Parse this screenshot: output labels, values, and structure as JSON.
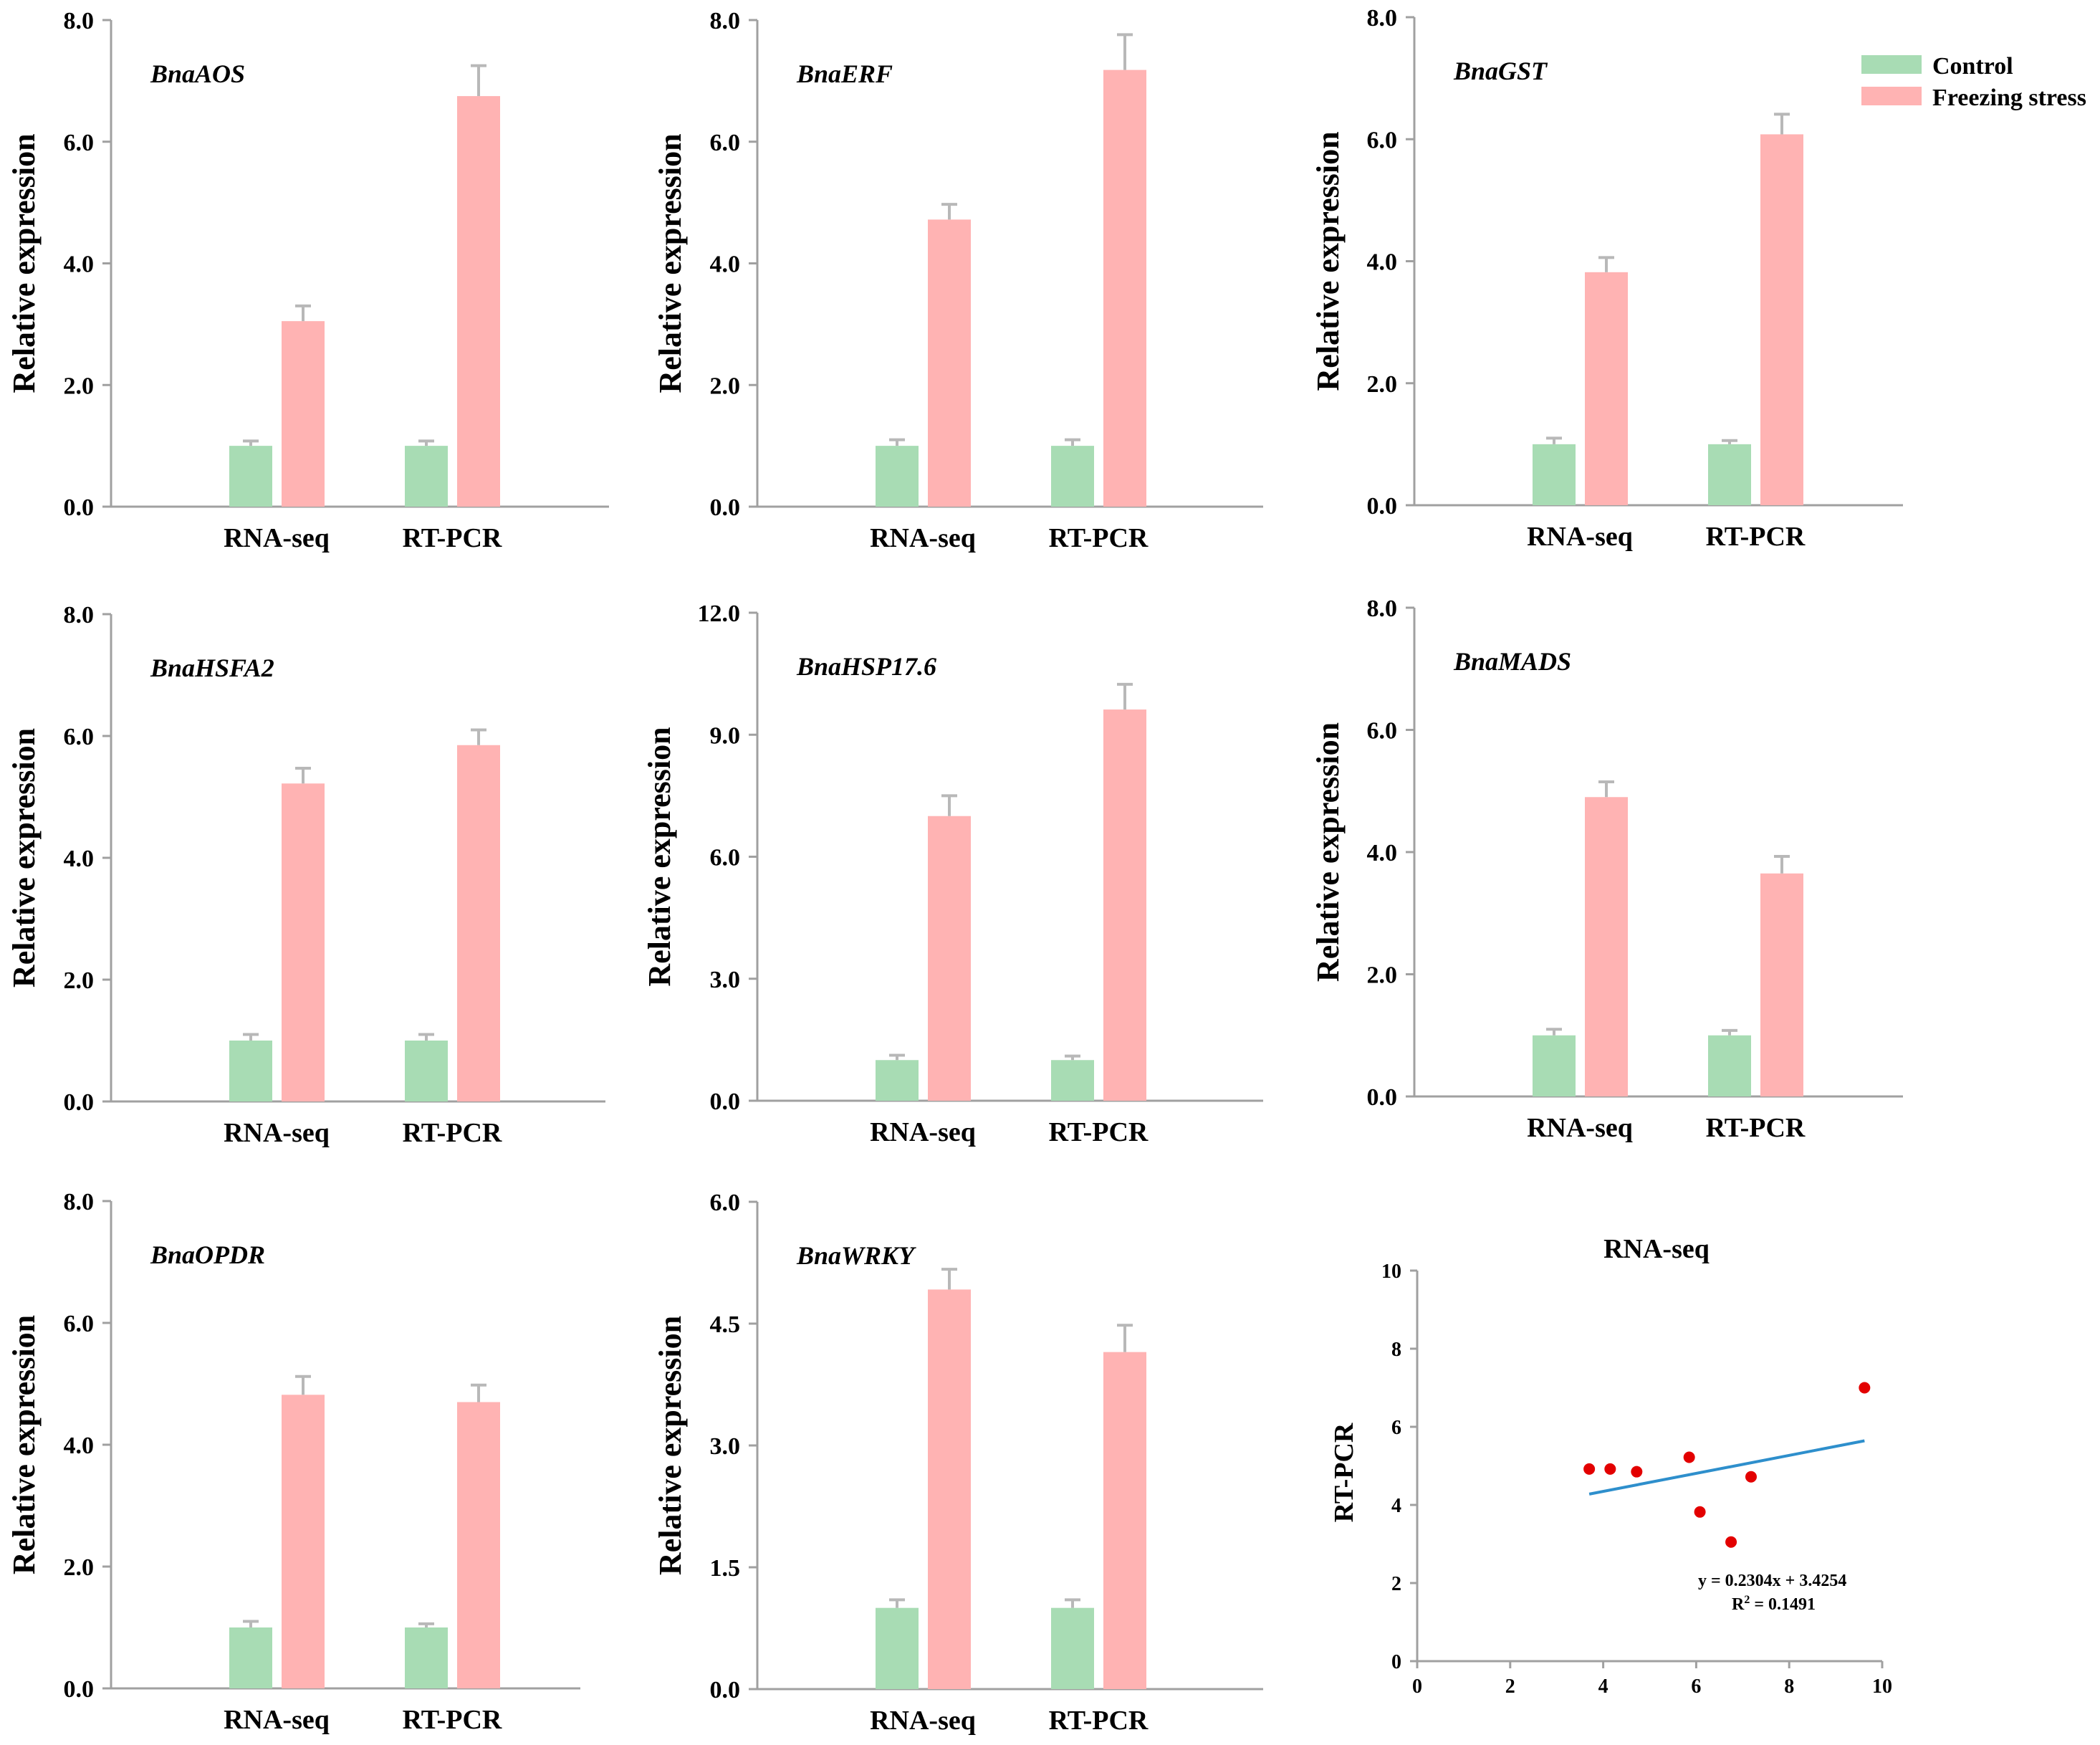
{
  "chart_data": [
    {
      "type": "bar",
      "gene": "BnaAOS",
      "ylabel": "Relative expression",
      "categories": [
        "RNA-seq",
        "RT-PCR"
      ],
      "ylim": [
        0,
        8.0
      ],
      "yticks": [
        "0.0",
        "2.0",
        "4.0",
        "6.0",
        "8.0"
      ],
      "series": [
        {
          "name": "Control",
          "values": [
            1.0,
            1.0
          ],
          "errors": [
            0.08,
            0.08
          ]
        },
        {
          "name": "Freezing stress",
          "values": [
            3.05,
            6.75
          ],
          "errors": [
            0.25,
            0.5
          ]
        }
      ]
    },
    {
      "type": "bar",
      "gene": "BnaERF",
      "ylabel": "Relative expression",
      "categories": [
        "RNA-seq",
        "RT-PCR"
      ],
      "ylim": [
        0,
        8.0
      ],
      "yticks": [
        "0.0",
        "2.0",
        "4.0",
        "6.0",
        "8.0"
      ],
      "series": [
        {
          "name": "Control",
          "values": [
            1.0,
            1.0
          ],
          "errors": [
            0.1,
            0.1
          ]
        },
        {
          "name": "Freezing stress",
          "values": [
            4.72,
            7.18
          ],
          "errors": [
            0.25,
            0.58
          ]
        }
      ]
    },
    {
      "type": "bar",
      "gene": "BnaGST",
      "ylabel": "Relative expression",
      "categories": [
        "RNA-seq",
        "RT-PCR"
      ],
      "ylim": [
        0,
        8.0
      ],
      "yticks": [
        "0.0",
        "2.0",
        "4.0",
        "6.0",
        "8.0"
      ],
      "series": [
        {
          "name": "Control",
          "values": [
            1.0,
            1.0
          ],
          "errors": [
            0.1,
            0.06
          ]
        },
        {
          "name": "Freezing stress",
          "values": [
            3.82,
            6.08
          ],
          "errors": [
            0.24,
            0.33
          ]
        }
      ]
    },
    {
      "type": "bar",
      "gene": "BnaHSFA2",
      "ylabel": "Relative expression",
      "categories": [
        "RNA-seq",
        "RT-PCR"
      ],
      "ylim": [
        0,
        8.0
      ],
      "yticks": [
        "0.0",
        "2.0",
        "4.0",
        "6.0",
        "8.0"
      ],
      "series": [
        {
          "name": "Control",
          "values": [
            1.0,
            1.0
          ],
          "errors": [
            0.1,
            0.1
          ]
        },
        {
          "name": "Freezing stress",
          "values": [
            5.22,
            5.85
          ],
          "errors": [
            0.25,
            0.25
          ]
        }
      ]
    },
    {
      "type": "bar",
      "gene": "BnaHSP17.6",
      "ylabel": "Relative expression",
      "categories": [
        "RNA-seq",
        "RT-PCR"
      ],
      "ylim": [
        0,
        12.0
      ],
      "yticks": [
        "0.0",
        "3.0",
        "6.0",
        "9.0",
        "12.0"
      ],
      "series": [
        {
          "name": "Control",
          "values": [
            1.0,
            1.0
          ],
          "errors": [
            0.12,
            0.1
          ]
        },
        {
          "name": "Freezing stress",
          "values": [
            7.0,
            9.62
          ],
          "errors": [
            0.5,
            0.62
          ]
        }
      ]
    },
    {
      "type": "bar",
      "gene": "BnaMADS",
      "ylabel": "Relative expression",
      "categories": [
        "RNA-seq",
        "RT-PCR"
      ],
      "ylim": [
        0,
        8.0
      ],
      "yticks": [
        "0.0",
        "2.0",
        "4.0",
        "6.0",
        "8.0"
      ],
      "series": [
        {
          "name": "Control",
          "values": [
            1.0,
            1.0
          ],
          "errors": [
            0.1,
            0.08
          ]
        },
        {
          "name": "Freezing stress",
          "values": [
            4.9,
            3.65
          ],
          "errors": [
            0.25,
            0.28
          ]
        }
      ]
    },
    {
      "type": "bar",
      "gene": "BnaOPDR",
      "ylabel": "Relative expression",
      "categories": [
        "RNA-seq",
        "RT-PCR"
      ],
      "ylim": [
        0,
        8.0
      ],
      "yticks": [
        "0.0",
        "2.0",
        "4.0",
        "6.0",
        "8.0"
      ],
      "series": [
        {
          "name": "Control",
          "values": [
            1.0,
            1.0
          ],
          "errors": [
            0.1,
            0.06
          ]
        },
        {
          "name": "Freezing stress",
          "values": [
            4.82,
            4.7
          ],
          "errors": [
            0.3,
            0.28
          ]
        }
      ]
    },
    {
      "type": "bar",
      "gene": "BnaWRKY",
      "ylabel": "Relative expression",
      "categories": [
        "RNA-seq",
        "RT-PCR"
      ],
      "ylim": [
        0,
        6.0
      ],
      "yticks": [
        "0.0",
        "1.5",
        "3.0",
        "4.5",
        "6.0"
      ],
      "series": [
        {
          "name": "Control",
          "values": [
            1.0,
            1.0
          ],
          "errors": [
            0.1,
            0.1
          ]
        },
        {
          "name": "Freezing stress",
          "values": [
            4.92,
            4.15
          ],
          "errors": [
            0.25,
            0.33
          ]
        }
      ]
    },
    {
      "type": "scatter",
      "title": "RNA-seq",
      "ylabel": "RT-PCR",
      "xlim": [
        0,
        10
      ],
      "ylim": [
        0,
        10
      ],
      "xticks": [
        "0",
        "2",
        "4",
        "6",
        "8",
        "10"
      ],
      "yticks": [
        "0",
        "2",
        "4",
        "6",
        "8",
        "10"
      ],
      "x": [
        3.7,
        4.15,
        4.72,
        5.85,
        6.08,
        6.75,
        7.18,
        9.62
      ],
      "y": [
        4.92,
        4.92,
        4.85,
        5.22,
        3.82,
        3.05,
        4.72,
        7.0
      ],
      "trendline": {
        "slope": 0.2304,
        "intercept": 3.4254,
        "x_range": [
          3.7,
          9.62
        ]
      },
      "equation": "y = 0.2304x + 3.4254",
      "r2_prefix": "R",
      "r2_sup": "2",
      "r2_suffix": " = 0.1491"
    }
  ],
  "legend": [
    {
      "label": "Control",
      "color": "#a8dcb4"
    },
    {
      "label": "Freezing stress",
      "color": "#ffb3b3"
    }
  ],
  "colors": {
    "control": "#a8dcb4",
    "freezing": "#ffb3b3",
    "errorbar": "#b8b8b8",
    "axis": "#a0a0a0",
    "trend": "#2e8fcc",
    "point": "#e30000"
  }
}
